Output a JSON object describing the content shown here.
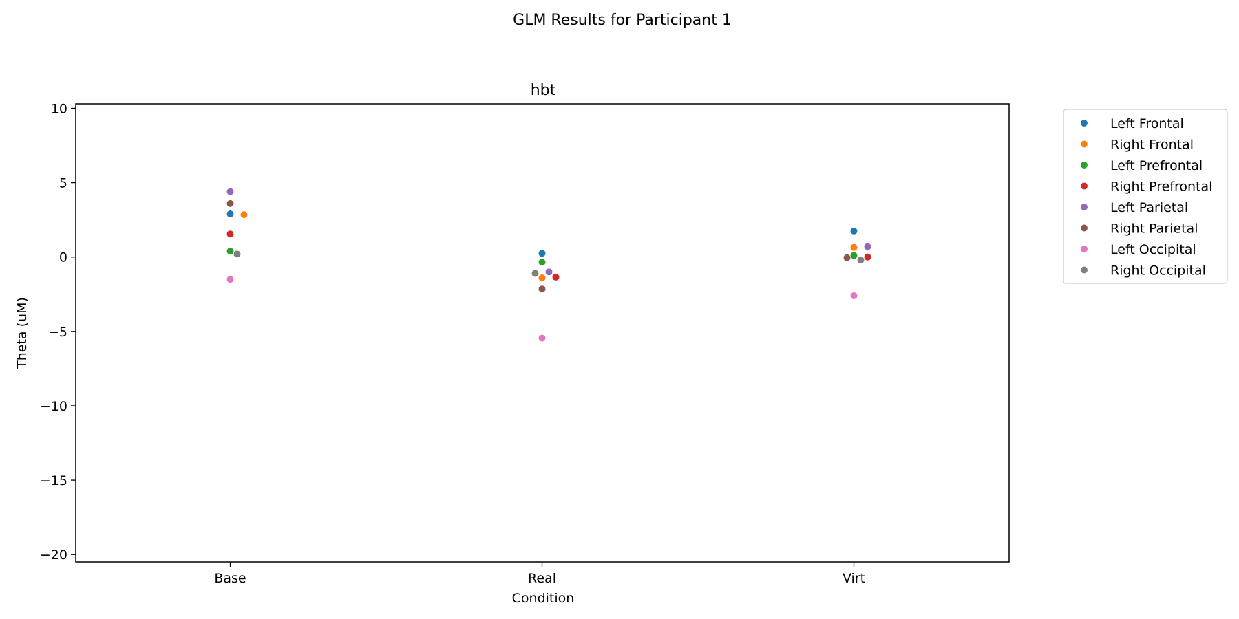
{
  "figure": {
    "suptitle": "GLM Results for Participant 1"
  },
  "chart_data": {
    "type": "scatter",
    "title": "hbt",
    "xlabel": "Condition",
    "ylabel": "Theta (uM)",
    "categories": [
      "Base",
      "Real",
      "Virt"
    ],
    "ylim": [
      -20.5,
      10.3
    ],
    "yticks": [
      10,
      5,
      0,
      -5,
      -10,
      -15,
      -20
    ],
    "ytick_labels": [
      "10",
      "5",
      "0",
      "−5",
      "−10",
      "−15",
      "−20"
    ],
    "grid": false,
    "legend_position": "outside-right-top",
    "series": [
      {
        "name": "Left Frontal",
        "color": "#1f77b4",
        "values": [
          2.9,
          0.25,
          1.75
        ]
      },
      {
        "name": "Right Frontal",
        "color": "#ff7f0e",
        "values": [
          2.85,
          -1.4,
          0.65
        ]
      },
      {
        "name": "Left Prefrontal",
        "color": "#2ca02c",
        "values": [
          0.4,
          -0.35,
          0.1
        ]
      },
      {
        "name": "Right Prefrontal",
        "color": "#d62728",
        "values": [
          1.55,
          -1.35,
          0.0
        ]
      },
      {
        "name": "Left Parietal",
        "color": "#9467bd",
        "values": [
          4.4,
          -1.0,
          0.7
        ]
      },
      {
        "name": "Right Parietal",
        "color": "#8c564b",
        "values": [
          3.6,
          -2.15,
          -0.05
        ]
      },
      {
        "name": "Left Occipital",
        "color": "#e377c2",
        "values": [
          -1.5,
          -5.45,
          -2.6
        ]
      },
      {
        "name": "Right Occipital",
        "color": "#7f7f7f",
        "values": [
          0.2,
          -1.1,
          -0.2
        ]
      }
    ]
  }
}
